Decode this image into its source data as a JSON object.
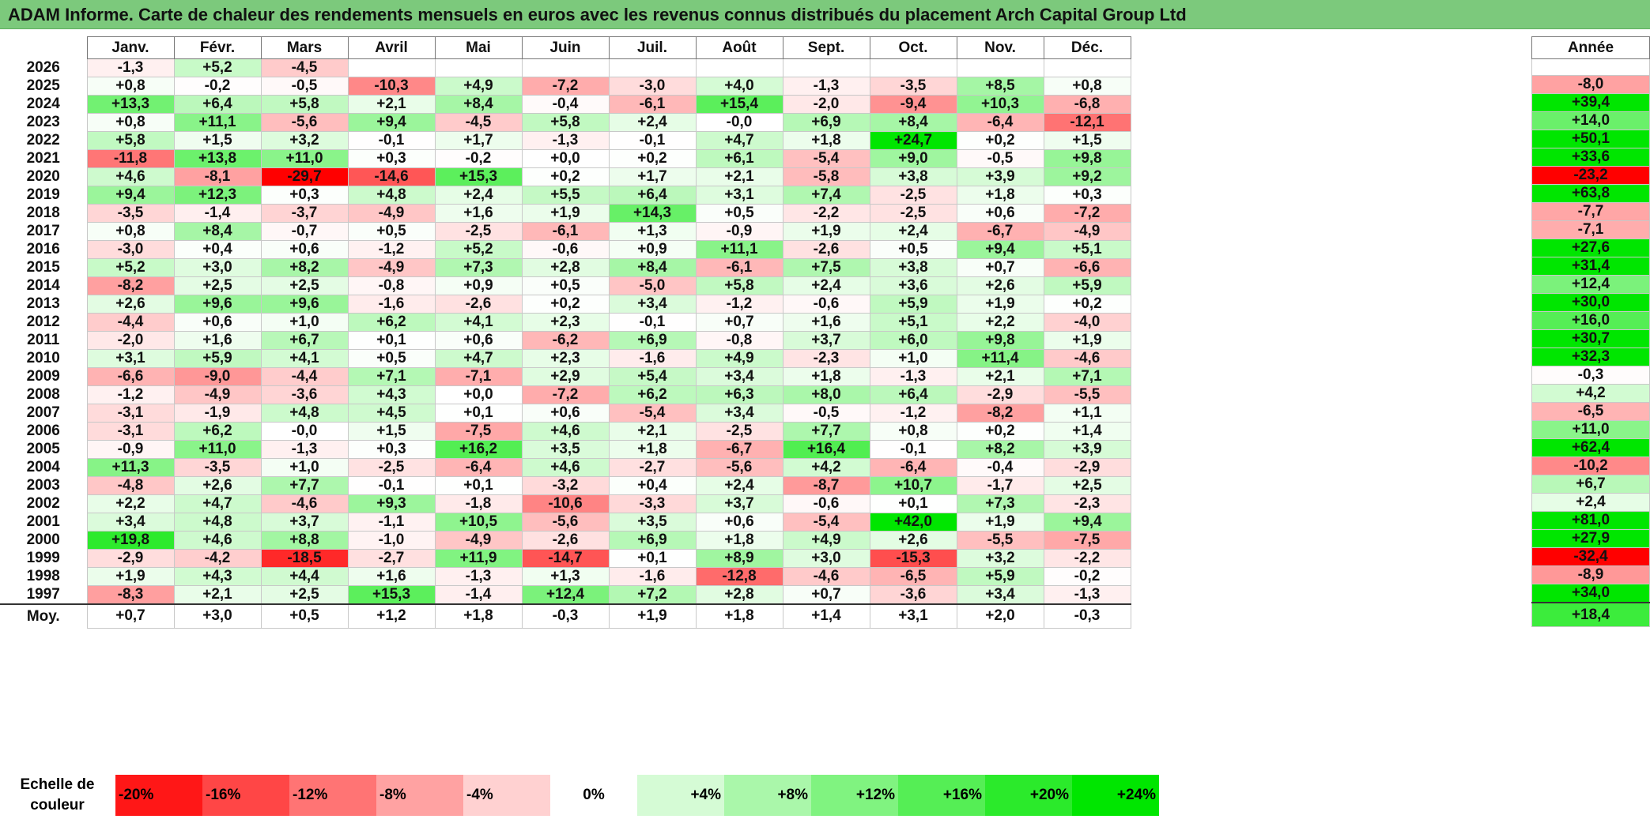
{
  "title": "ADAM Informe. Carte de chaleur des rendements mensuels en euros avec les revenus connus distribués du placement Arch Capital Group Ltd",
  "months": [
    "Janv.",
    "Févr.",
    "Mars",
    "Avril",
    "Mai",
    "Juin",
    "Juil.",
    "Août",
    "Sept.",
    "Oct.",
    "Nov.",
    "Déc."
  ],
  "year_header": "Année",
  "avg_label": "Moy.",
  "scale_label_1": "Echelle de",
  "scale_label_2": "couleur",
  "scale": [
    {
      "label": "-20%",
      "value": -20
    },
    {
      "label": "-16%",
      "value": -16
    },
    {
      "label": "-12%",
      "value": -12
    },
    {
      "label": "-8%",
      "value": -8
    },
    {
      "label": "-4%",
      "value": -4
    },
    {
      "label": "0%",
      "value": 0
    },
    {
      "label": "+4%",
      "value": 4
    },
    {
      "label": "+8%",
      "value": 8
    },
    {
      "label": "+12%",
      "value": 12
    },
    {
      "label": "+16%",
      "value": 16
    },
    {
      "label": "+20%",
      "value": 20
    },
    {
      "label": "+24%",
      "value": 24
    }
  ],
  "colors": {
    "negative_max": "#ff0000",
    "neutral": "#ffffff",
    "positive_max": "#00e600"
  },
  "chart_data": {
    "type": "heatmap",
    "x_categories": [
      "Janv.",
      "Févr.",
      "Mars",
      "Avril",
      "Mai",
      "Juin",
      "Juil.",
      "Août",
      "Sept.",
      "Oct.",
      "Nov.",
      "Déc."
    ],
    "rows": [
      {
        "year": "2026",
        "values": [
          "-1,3",
          "+5,2",
          "-4,5",
          "",
          "",
          "",
          "",
          "",
          "",
          "",
          "",
          ""
        ],
        "annual": ""
      },
      {
        "year": "2025",
        "values": [
          "+0,8",
          "-0,2",
          "-0,5",
          "-10,3",
          "+4,9",
          "-7,2",
          "-3,0",
          "+4,0",
          "-1,3",
          "-3,5",
          "+8,5",
          "+0,8"
        ],
        "annual": "-8,0"
      },
      {
        "year": "2024",
        "values": [
          "+13,3",
          "+6,4",
          "+5,8",
          "+2,1",
          "+8,4",
          "-0,4",
          "-6,1",
          "+15,4",
          "-2,0",
          "-9,4",
          "+10,3",
          "-6,8"
        ],
        "annual": "+39,4"
      },
      {
        "year": "2023",
        "values": [
          "+0,8",
          "+11,1",
          "-5,6",
          "+9,4",
          "-4,5",
          "+5,8",
          "+2,4",
          "-0,0",
          "+6,9",
          "+8,4",
          "-6,4",
          "-12,1"
        ],
        "annual": "+14,0"
      },
      {
        "year": "2022",
        "values": [
          "+5,8",
          "+1,5",
          "+3,2",
          "-0,1",
          "+1,7",
          "-1,3",
          "-0,1",
          "+4,7",
          "+1,8",
          "+24,7",
          "+0,2",
          "+1,5"
        ],
        "annual": "+50,1"
      },
      {
        "year": "2021",
        "values": [
          "-11,8",
          "+13,8",
          "+11,0",
          "+0,3",
          "-0,2",
          "+0,0",
          "+0,2",
          "+6,1",
          "-5,4",
          "+9,0",
          "-0,5",
          "+9,8"
        ],
        "annual": "+33,6"
      },
      {
        "year": "2020",
        "values": [
          "+4,6",
          "-8,1",
          "-29,7",
          "-14,6",
          "+15,3",
          "+0,2",
          "+1,7",
          "+2,1",
          "-5,8",
          "+3,8",
          "+3,9",
          "+9,2"
        ],
        "annual": "-23,2"
      },
      {
        "year": "2019",
        "values": [
          "+9,4",
          "+12,3",
          "+0,3",
          "+4,8",
          "+2,4",
          "+5,5",
          "+6,4",
          "+3,1",
          "+7,4",
          "-2,5",
          "+1,8",
          "+0,3"
        ],
        "annual": "+63,8"
      },
      {
        "year": "2018",
        "values": [
          "-3,5",
          "-1,4",
          "-3,7",
          "-4,9",
          "+1,6",
          "+1,9",
          "+14,3",
          "+0,5",
          "-2,2",
          "-2,5",
          "+0,6",
          "-7,2"
        ],
        "annual": "-7,7"
      },
      {
        "year": "2017",
        "values": [
          "+0,8",
          "+8,4",
          "-0,7",
          "+0,5",
          "-2,5",
          "-6,1",
          "+1,3",
          "-0,9",
          "+1,9",
          "+2,4",
          "-6,7",
          "-4,9"
        ],
        "annual": "-7,1"
      },
      {
        "year": "2016",
        "values": [
          "-3,0",
          "+0,4",
          "+0,6",
          "-1,2",
          "+5,2",
          "-0,6",
          "+0,9",
          "+11,1",
          "-2,6",
          "+0,5",
          "+9,4",
          "+5,1"
        ],
        "annual": "+27,6"
      },
      {
        "year": "2015",
        "values": [
          "+5,2",
          "+3,0",
          "+8,2",
          "-4,9",
          "+7,3",
          "+2,8",
          "+8,4",
          "-6,1",
          "+7,5",
          "+3,8",
          "+0,7",
          "-6,6"
        ],
        "annual": "+31,4"
      },
      {
        "year": "2014",
        "values": [
          "-8,2",
          "+2,5",
          "+2,5",
          "-0,8",
          "+0,9",
          "+0,5",
          "-5,0",
          "+5,8",
          "+2,4",
          "+3,6",
          "+2,6",
          "+5,9"
        ],
        "annual": "+12,4"
      },
      {
        "year": "2013",
        "values": [
          "+2,6",
          "+9,6",
          "+9,6",
          "-1,6",
          "-2,6",
          "+0,2",
          "+3,4",
          "-1,2",
          "-0,6",
          "+5,9",
          "+1,9",
          "+0,2"
        ],
        "annual": "+30,0"
      },
      {
        "year": "2012",
        "values": [
          "-4,4",
          "+0,6",
          "+1,0",
          "+6,2",
          "+4,1",
          "+2,3",
          "-0,1",
          "+0,7",
          "+1,6",
          "+5,1",
          "+2,2",
          "-4,0"
        ],
        "annual": "+16,0"
      },
      {
        "year": "2011",
        "values": [
          "-2,0",
          "+1,6",
          "+6,7",
          "+0,1",
          "+0,6",
          "-6,2",
          "+6,9",
          "-0,8",
          "+3,7",
          "+6,0",
          "+9,8",
          "+1,9"
        ],
        "annual": "+30,7"
      },
      {
        "year": "2010",
        "values": [
          "+3,1",
          "+5,9",
          "+4,1",
          "+0,5",
          "+4,7",
          "+2,3",
          "-1,6",
          "+4,9",
          "-2,3",
          "+1,0",
          "+11,4",
          "-4,6"
        ],
        "annual": "+32,3"
      },
      {
        "year": "2009",
        "values": [
          "-6,6",
          "-9,0",
          "-4,4",
          "+7,1",
          "-7,1",
          "+2,9",
          "+5,4",
          "+3,4",
          "+1,8",
          "-1,3",
          "+2,1",
          "+7,1"
        ],
        "annual": "-0,3"
      },
      {
        "year": "2008",
        "values": [
          "-1,2",
          "-4,9",
          "-3,6",
          "+4,3",
          "+0,0",
          "-7,2",
          "+6,2",
          "+6,3",
          "+8,0",
          "+6,4",
          "-2,9",
          "-5,5"
        ],
        "annual": "+4,2"
      },
      {
        "year": "2007",
        "values": [
          "-3,1",
          "-1,9",
          "+4,8",
          "+4,5",
          "+0,1",
          "+0,6",
          "-5,4",
          "+3,4",
          "-0,5",
          "-1,2",
          "-8,2",
          "+1,1"
        ],
        "annual": "-6,5"
      },
      {
        "year": "2006",
        "values": [
          "-3,1",
          "+6,2",
          "-0,0",
          "+1,5",
          "-7,5",
          "+4,6",
          "+2,1",
          "-2,5",
          "+7,7",
          "+0,8",
          "+0,2",
          "+1,4"
        ],
        "annual": "+11,0"
      },
      {
        "year": "2005",
        "values": [
          "-0,9",
          "+11,0",
          "-1,3",
          "+0,3",
          "+16,2",
          "+3,5",
          "+1,8",
          "-6,7",
          "+16,4",
          "-0,1",
          "+8,2",
          "+3,9"
        ],
        "annual": "+62,4"
      },
      {
        "year": "2004",
        "values": [
          "+11,3",
          "-3,5",
          "+1,0",
          "-2,5",
          "-6,4",
          "+4,6",
          "-2,7",
          "-5,6",
          "+4,2",
          "-6,4",
          "-0,4",
          "-2,9"
        ],
        "annual": "-10,2"
      },
      {
        "year": "2003",
        "values": [
          "-4,8",
          "+2,6",
          "+7,7",
          "-0,1",
          "+0,1",
          "-3,2",
          "+0,4",
          "+2,4",
          "-8,7",
          "+10,7",
          "-1,7",
          "+2,5"
        ],
        "annual": "+6,7"
      },
      {
        "year": "2002",
        "values": [
          "+2,2",
          "+4,7",
          "-4,6",
          "+9,3",
          "-1,8",
          "-10,6",
          "-3,3",
          "+3,7",
          "-0,6",
          "+0,1",
          "+7,3",
          "-2,3"
        ],
        "annual": "+2,4"
      },
      {
        "year": "2001",
        "values": [
          "+3,4",
          "+4,8",
          "+3,7",
          "-1,1",
          "+10,5",
          "-5,6",
          "+3,5",
          "+0,6",
          "-5,4",
          "+42,0",
          "+1,9",
          "+9,4"
        ],
        "annual": "+81,0"
      },
      {
        "year": "2000",
        "values": [
          "+19,8",
          "+4,6",
          "+8,8",
          "-1,0",
          "-4,9",
          "-2,6",
          "+6,9",
          "+1,8",
          "+4,9",
          "+2,6",
          "-5,5",
          "-7,5"
        ],
        "annual": "+27,9"
      },
      {
        "year": "1999",
        "values": [
          "-2,9",
          "-4,2",
          "-18,5",
          "-2,7",
          "+11,9",
          "-14,7",
          "+0,1",
          "+8,9",
          "+3,0",
          "-15,3",
          "+3,2",
          "-2,2"
        ],
        "annual": "-32,4"
      },
      {
        "year": "1998",
        "values": [
          "+1,9",
          "+4,3",
          "+4,4",
          "+1,6",
          "-1,3",
          "+1,3",
          "-1,6",
          "-12,8",
          "-4,6",
          "-6,5",
          "+5,9",
          "-0,2"
        ],
        "annual": "-8,9"
      },
      {
        "year": "1997",
        "values": [
          "-8,3",
          "+2,1",
          "+2,5",
          "+15,3",
          "-1,4",
          "+12,4",
          "+7,2",
          "+2,8",
          "+0,7",
          "-3,6",
          "+3,4",
          "-1,3"
        ],
        "annual": "+34,0"
      }
    ],
    "average": {
      "values": [
        "+0,7",
        "+3,0",
        "+0,5",
        "+1,2",
        "+1,8",
        "-0,3",
        "+1,9",
        "+1,8",
        "+1,4",
        "+3,1",
        "+2,0",
        "-0,3"
      ],
      "annual": "+18,4"
    }
  }
}
